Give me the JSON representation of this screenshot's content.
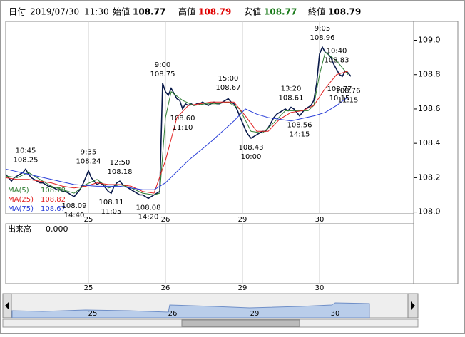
{
  "header": {
    "date_label": "日付",
    "date": "2019/07/30",
    "time": "11:30",
    "open_label": "始値",
    "open": 108.77,
    "high_label": "高値",
    "high": 108.79,
    "low_label": "安値",
    "low": 108.77,
    "close_label": "終値",
    "close": 108.79
  },
  "chart_data": {
    "type": "line",
    "x": [
      0,
      1,
      2,
      3,
      4,
      5,
      6,
      7,
      8,
      9,
      10,
      11,
      12,
      13,
      14,
      15,
      16,
      17,
      18,
      19,
      20,
      21,
      22,
      23,
      24,
      25,
      26,
      27,
      28,
      29,
      30,
      31,
      32,
      33,
      34,
      35,
      36,
      37,
      38,
      39,
      40,
      41,
      42,
      43,
      44,
      45,
      46,
      47,
      48,
      49,
      50,
      51,
      52,
      53,
      54,
      55,
      56,
      57,
      58,
      59,
      60,
      61,
      62,
      63,
      64,
      65,
      66,
      67,
      68,
      69,
      70,
      71,
      72,
      73,
      74,
      75,
      76,
      77,
      78,
      79,
      80,
      81,
      82,
      83,
      84,
      85,
      86,
      87,
      88,
      89,
      90,
      91,
      92,
      93,
      94,
      95,
      96,
      97,
      98,
      99,
      100,
      101,
      102,
      103,
      104,
      105,
      106,
      107,
      108,
      109,
      110,
      111,
      112,
      113,
      114,
      115,
      116,
      117,
      118,
      119,
      120,
      121
    ],
    "series": [
      {
        "name": "price",
        "color": "#0a1a4a",
        "values": [
          108.22,
          108.2,
          108.18,
          108.2,
          108.21,
          108.22,
          108.23,
          108.25,
          108.22,
          108.2,
          108.19,
          108.18,
          108.17,
          108.17,
          108.16,
          108.15,
          108.15,
          108.14,
          108.13,
          108.13,
          108.12,
          108.12,
          108.11,
          108.1,
          108.09,
          108.11,
          108.13,
          108.16,
          108.2,
          108.24,
          108.2,
          108.18,
          108.16,
          108.17,
          108.16,
          108.14,
          108.12,
          108.11,
          108.15,
          108.17,
          108.18,
          108.16,
          108.15,
          108.14,
          108.13,
          108.12,
          108.11,
          108.1,
          108.1,
          108.09,
          108.08,
          108.09,
          108.1,
          108.11,
          108.12,
          108.75,
          108.7,
          108.68,
          108.72,
          108.69,
          108.66,
          108.65,
          108.6,
          108.63,
          108.62,
          108.63,
          108.62,
          108.63,
          108.63,
          108.64,
          108.63,
          108.62,
          108.63,
          108.64,
          108.63,
          108.63,
          108.64,
          108.65,
          108.66,
          108.64,
          108.63,
          108.6,
          108.56,
          108.52,
          108.48,
          108.45,
          108.43,
          108.44,
          108.45,
          108.46,
          108.47,
          108.47,
          108.49,
          108.52,
          108.55,
          108.57,
          108.58,
          108.59,
          108.6,
          108.59,
          108.61,
          108.6,
          108.58,
          108.56,
          108.58,
          108.6,
          108.61,
          108.62,
          108.65,
          108.75,
          108.92,
          108.96,
          108.93,
          108.92,
          108.9,
          108.86,
          108.83,
          108.8,
          108.79,
          108.82,
          108.81,
          108.79
        ]
      },
      {
        "name": "MA(5)",
        "color": "#2e7d32",
        "legend_value": 108.78,
        "x": [
          0,
          4,
          8,
          12,
          16,
          20,
          24,
          28,
          32,
          36,
          40,
          44,
          48,
          52,
          54,
          56,
          58,
          62,
          66,
          70,
          74,
          78,
          82,
          86,
          90,
          94,
          98,
          102,
          106,
          108,
          110,
          112,
          116,
          120
        ],
        "values": [
          108.21,
          108.2,
          108.23,
          108.19,
          108.15,
          108.13,
          108.11,
          108.16,
          108.19,
          108.14,
          108.16,
          108.14,
          108.11,
          108.1,
          108.11,
          108.55,
          108.7,
          108.65,
          108.62,
          108.63,
          108.63,
          108.64,
          108.6,
          108.47,
          108.46,
          108.52,
          108.59,
          108.59,
          108.59,
          108.62,
          108.8,
          108.93,
          108.88,
          108.8
        ]
      },
      {
        "name": "MA(25)",
        "color": "#e02020",
        "legend_value": 108.82,
        "x": [
          0,
          4,
          8,
          12,
          16,
          20,
          24,
          28,
          32,
          36,
          40,
          44,
          48,
          52,
          56,
          60,
          64,
          68,
          72,
          76,
          80,
          84,
          88,
          92,
          96,
          100,
          104,
          108,
          112,
          116,
          120
        ],
        "values": [
          108.2,
          108.19,
          108.19,
          108.18,
          108.17,
          108.15,
          108.14,
          108.15,
          108.17,
          108.16,
          108.16,
          108.15,
          108.12,
          108.11,
          108.3,
          108.55,
          108.62,
          108.63,
          108.64,
          108.64,
          108.64,
          108.56,
          108.47,
          108.47,
          108.54,
          108.58,
          108.59,
          108.62,
          108.72,
          108.8,
          108.82
        ]
      },
      {
        "name": "MA(75)",
        "color": "#2a3fd8",
        "legend_value": 108.67,
        "x": [
          0,
          8,
          16,
          24,
          32,
          40,
          48,
          52,
          56,
          64,
          72,
          80,
          84,
          88,
          92,
          100,
          108,
          112,
          116,
          120
        ],
        "values": [
          108.25,
          108.22,
          108.19,
          108.16,
          108.15,
          108.15,
          108.13,
          108.13,
          108.17,
          108.3,
          108.41,
          108.53,
          108.6,
          108.57,
          108.55,
          108.53,
          108.56,
          108.58,
          108.62,
          108.67
        ]
      }
    ],
    "xlim": [
      0,
      143
    ],
    "xticks": [
      {
        "value": 29,
        "label": "25"
      },
      {
        "value": 56,
        "label": "26"
      },
      {
        "value": 83,
        "label": "29"
      },
      {
        "value": 110,
        "label": "30"
      }
    ],
    "ylim": [
      107.99,
      109.11
    ],
    "yticks": [
      {
        "value": 108.0,
        "label": "108.0"
      },
      108.2,
      108.4,
      108.6,
      108.8,
      {
        "value": 109.0,
        "label": "109.0"
      }
    ],
    "annotations": [
      {
        "time": "10:45",
        "price": 108.25,
        "x": 7,
        "side": "above"
      },
      {
        "time": "14:40",
        "price": 108.09,
        "x": 24,
        "side": "below"
      },
      {
        "time": "9:35",
        "price": 108.24,
        "x": 29,
        "side": "above"
      },
      {
        "time": "11:05",
        "price": 108.11,
        "x": 37,
        "side": "below"
      },
      {
        "time": "12:50",
        "price": 108.18,
        "x": 40,
        "side": "above"
      },
      {
        "time": "14:20",
        "price": 108.08,
        "x": 50,
        "side": "below"
      },
      {
        "time": "9:00",
        "price": 108.75,
        "x": 55,
        "side": "above"
      },
      {
        "time": "11:10",
        "price": {
          "value": 108.6,
          "label": "108.60"
        },
        "x": 62,
        "side": "below"
      },
      {
        "time": "15:00",
        "price": 108.67,
        "x": 78,
        "side": "above"
      },
      {
        "time": "10:00",
        "price": 108.43,
        "x": 86,
        "side": "below"
      },
      {
        "time": "13:20",
        "price": 108.61,
        "x": 100,
        "side": "above"
      },
      {
        "time": "14:15",
        "price": 108.56,
        "x": 103,
        "side": "below"
      },
      {
        "time": "9:05",
        "price": 108.96,
        "x": 111,
        "side": "above"
      },
      {
        "time": "10:40",
        "price": 108.83,
        "x": 116,
        "side": "above"
      },
      {
        "time": "10:15",
        "price": 108.77,
        "x": 117,
        "side": "below"
      },
      {
        "time": "11:15",
        "price": 108.76,
        "x": 120,
        "side": "below"
      }
    ],
    "volume_label": "出来高",
    "volume_value": "0.000"
  },
  "navigator": {
    "labels": [
      "25",
      "26",
      "29",
      "30"
    ]
  }
}
